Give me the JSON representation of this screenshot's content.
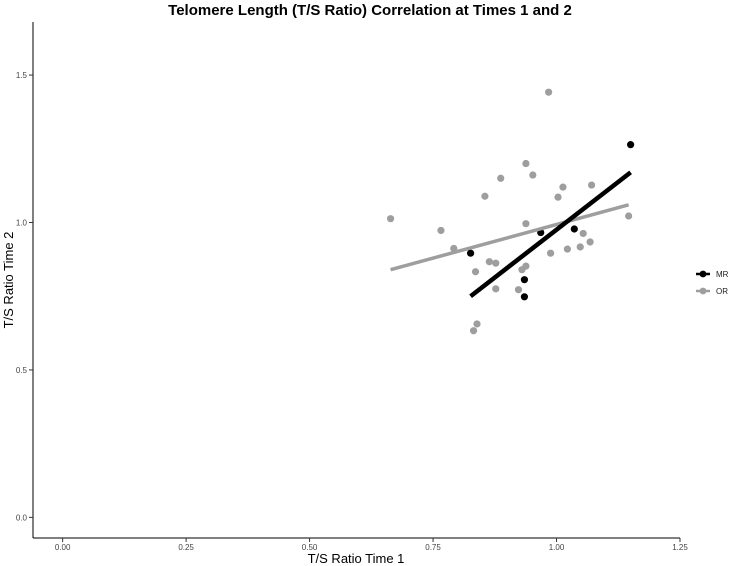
{
  "chart_data": {
    "type": "scatter",
    "title": "Telomere Length (T/S Ratio) Correlation at Times 1 and 2",
    "xlabel": "T/S Ratio Time 1",
    "ylabel": "T/S Ratio Time 2",
    "xlim": [
      -0.06,
      1.25
    ],
    "ylim": [
      -0.07,
      1.68
    ],
    "x_ticks": [
      0.0,
      0.25,
      0.5,
      0.75,
      1.0,
      1.25
    ],
    "x_tick_labels": [
      "0.00",
      "0.25",
      "0.50",
      "0.75",
      "1.00",
      "1.25"
    ],
    "y_ticks": [
      0.0,
      0.5,
      1.0,
      1.5
    ],
    "y_tick_labels": [
      "0.0",
      "0.5",
      "1.0",
      "1.5"
    ],
    "grid": false,
    "legend_position": "right",
    "series": [
      {
        "name": "MR",
        "color": "#000000",
        "points": [
          {
            "x": 0.826,
            "y": 0.896
          },
          {
            "x": 0.935,
            "y": 0.748
          },
          {
            "x": 0.935,
            "y": 0.806
          },
          {
            "x": 0.968,
            "y": 0.966
          },
          {
            "x": 1.036,
            "y": 0.978
          },
          {
            "x": 1.15,
            "y": 1.264
          }
        ],
        "fit_line": {
          "x": [
            0.826,
            1.15
          ],
          "y": [
            0.75,
            1.17
          ]
        }
      },
      {
        "name": "OR",
        "color": "#9e9e9e",
        "points": [
          {
            "x": 0.664,
            "y": 1.013
          },
          {
            "x": 0.766,
            "y": 0.973
          },
          {
            "x": 0.792,
            "y": 0.912
          },
          {
            "x": 0.836,
            "y": 0.833
          },
          {
            "x": 0.839,
            "y": 0.656
          },
          {
            "x": 0.832,
            "y": 0.633
          },
          {
            "x": 0.855,
            "y": 1.089
          },
          {
            "x": 0.864,
            "y": 0.867
          },
          {
            "x": 0.877,
            "y": 0.862
          },
          {
            "x": 0.877,
            "y": 0.775
          },
          {
            "x": 0.887,
            "y": 1.15
          },
          {
            "x": 0.923,
            "y": 0.772
          },
          {
            "x": 0.93,
            "y": 0.84
          },
          {
            "x": 0.938,
            "y": 0.852
          },
          {
            "x": 0.938,
            "y": 0.996
          },
          {
            "x": 0.938,
            "y": 1.2
          },
          {
            "x": 0.952,
            "y": 1.161
          },
          {
            "x": 0.984,
            "y": 1.442
          },
          {
            "x": 0.988,
            "y": 0.896
          },
          {
            "x": 1.003,
            "y": 1.086
          },
          {
            "x": 1.013,
            "y": 1.12
          },
          {
            "x": 1.022,
            "y": 0.91
          },
          {
            "x": 1.048,
            "y": 0.917
          },
          {
            "x": 1.054,
            "y": 0.963
          },
          {
            "x": 1.068,
            "y": 0.934
          },
          {
            "x": 1.071,
            "y": 1.127
          },
          {
            "x": 1.146,
            "y": 1.022
          }
        ],
        "fit_line": {
          "x": [
            0.664,
            1.146
          ],
          "y": [
            0.84,
            1.06
          ]
        }
      }
    ]
  }
}
